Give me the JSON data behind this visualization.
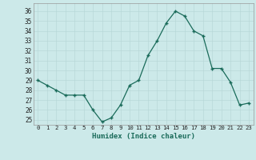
{
  "x": [
    0,
    1,
    2,
    3,
    4,
    5,
    6,
    7,
    8,
    9,
    10,
    11,
    12,
    13,
    14,
    15,
    16,
    17,
    18,
    19,
    20,
    21,
    22,
    23
  ],
  "y": [
    29,
    28.5,
    28,
    27.5,
    27.5,
    27.5,
    26,
    24.8,
    25.2,
    26.5,
    28.5,
    29,
    31.5,
    33,
    34.8,
    36,
    35.5,
    34,
    33.5,
    30.2,
    30.2,
    28.8,
    26.5,
    26.7
  ],
  "line_color": "#1a6b5a",
  "marker": "+",
  "marker_size": 3,
  "bg_color": "#cce9e9",
  "grid_color": "#b8d8d8",
  "xlabel": "Humidex (Indice chaleur)",
  "yticks": [
    25,
    26,
    27,
    28,
    29,
    30,
    31,
    32,
    33,
    34,
    35,
    36
  ],
  "xticks": [
    0,
    1,
    2,
    3,
    4,
    5,
    6,
    7,
    8,
    9,
    10,
    11,
    12,
    13,
    14,
    15,
    16,
    17,
    18,
    19,
    20,
    21,
    22,
    23
  ],
  "ylim_low": 24.5,
  "ylim_high": 36.8,
  "xlim_low": -0.5,
  "xlim_high": 23.5
}
